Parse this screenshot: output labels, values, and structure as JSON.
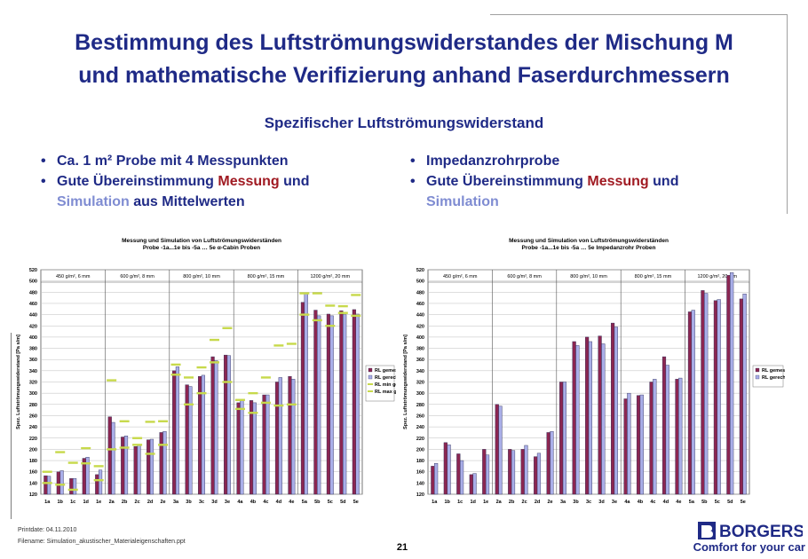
{
  "slide": {
    "title_line1": "Bestimmung des Luftströmungswiderstandes der Mischung M",
    "title_line2": "und mathematische Verifizierung anhand Faserdurchmessern",
    "subtitle": "Spezifischer Luftströmungswiderstand",
    "left_bullets": [
      {
        "pre": "Ca. 1 m² Probe mit 4 Messpunkten",
        "red": "",
        "mid": "",
        "blue": "",
        "post": ""
      },
      {
        "pre": "Gute Übereinstimmung ",
        "red": "Messung",
        "mid": " und ",
        "blue": "Simulation",
        "post": " aus Mittelwerten"
      }
    ],
    "right_bullets": [
      {
        "pre": "Impedanzrohrprobe",
        "red": "",
        "mid": "",
        "blue": "",
        "post": ""
      },
      {
        "pre": "Gute Übereinstimmung ",
        "red": "Messung",
        "mid": " und ",
        "blue": "Simulation",
        "post": ""
      }
    ],
    "footer_printdate": "Printdate: 04.11.2010",
    "footer_filename": "Filename: Simulation_akustischer_Materialeigenschaften.ppt",
    "page_number": "21",
    "logo_text": "BORGERS",
    "slogan": "Comfort for your car"
  },
  "colors": {
    "navy": "#1f2a86",
    "red": "#a01a22",
    "light_blue": "#7f8cd2",
    "bar_measured": "#8b2651",
    "bar_calculated": "#a9aee8",
    "marker_min_max": "#c7d94b"
  },
  "chart_data": [
    {
      "type": "bar",
      "title": "Messung und Simulation von Luftströmungswiderständen",
      "subtitle": "Probe -1a...1e bis -5a … 5e α-Cabin Proben",
      "ylabel": "Spez. Luftströmungswiderstand [Pa s/m]",
      "xlabel": "",
      "ylim": [
        120,
        520
      ],
      "yticks": [
        120,
        140,
        160,
        180,
        200,
        220,
        240,
        260,
        280,
        300,
        320,
        340,
        360,
        380,
        400,
        420,
        440,
        460,
        480,
        500,
        520
      ],
      "grid": true,
      "legend_position": "right",
      "groups": [
        "450 g/m², 6 mm",
        "600 g/m², 8 mm",
        "800 g/m², 10 mm",
        "800 g/m², 15 mm",
        "1200 g/m², 20 mm"
      ],
      "categories": [
        "1a",
        "1b",
        "1c",
        "1d",
        "1e",
        "2a",
        "2b",
        "2c",
        "2d",
        "2e",
        "3a",
        "3b",
        "3c",
        "3d",
        "3e",
        "4a",
        "4b",
        "4c",
        "4d",
        "4e",
        "5a",
        "5b",
        "5c",
        "5d",
        "5e"
      ],
      "series": [
        {
          "name": "RL gemessen",
          "kind": "bar",
          "values": [
            153,
            160,
            148,
            184,
            155,
            258,
            222,
            205,
            217,
            230,
            340,
            315,
            330,
            365,
            368,
            283,
            287,
            297,
            320,
            330,
            462,
            448,
            441,
            447,
            449
          ]
        },
        {
          "name": "RL gerechnet",
          "kind": "bar",
          "values": [
            152,
            162,
            148,
            186,
            163,
            248,
            224,
            208,
            218,
            232,
            347,
            312,
            332,
            358,
            367,
            288,
            283,
            297,
            328,
            325,
            477,
            438,
            438,
            440,
            441
          ]
        },
        {
          "name": "RL min gem.",
          "kind": "marker",
          "values": [
            140,
            137,
            128,
            175,
            145,
            200,
            203,
            208,
            192,
            208,
            333,
            280,
            300,
            355,
            320,
            272,
            265,
            283,
            278,
            280,
            440,
            430,
            420,
            443,
            438
          ]
        },
        {
          "name": "RL max gem.",
          "kind": "marker",
          "values": [
            160,
            195,
            176,
            202,
            170,
            323,
            250,
            220,
            249,
            250,
            351,
            328,
            346,
            395,
            416,
            288,
            300,
            328,
            385,
            388,
            478,
            478,
            456,
            455,
            475
          ]
        }
      ]
    },
    {
      "type": "bar",
      "title": "Messung und Simulation von Luftströmungswiderständen",
      "subtitle": "Probe -1a...1e bis -5a … 5e Impedanzrohr Proben",
      "ylabel": "Spez. Luftströmungswiderstand [Pa s/m]",
      "xlabel": "",
      "ylim": [
        120,
        520
      ],
      "yticks": [
        120,
        140,
        160,
        180,
        200,
        220,
        240,
        260,
        280,
        300,
        320,
        340,
        360,
        380,
        400,
        420,
        440,
        460,
        480,
        500,
        520
      ],
      "grid": true,
      "legend_position": "right",
      "groups": [
        "450 g/m², 6 mm",
        "600 g/m², 8 mm",
        "800 g/m², 10 mm",
        "800 g/m², 15 mm",
        "1200 g/m², 20 mm"
      ],
      "categories": [
        "1a",
        "1b",
        "1c",
        "1d",
        "1e",
        "2a",
        "2b",
        "2c",
        "2d",
        "2e",
        "3a",
        "3b",
        "3c",
        "3d",
        "3e",
        "4a",
        "4b",
        "4c",
        "4d",
        "4e",
        "5a",
        "5b",
        "5c",
        "5d",
        "5e"
      ],
      "series": [
        {
          "name": "RL gemessen",
          "kind": "bar",
          "values": [
            170,
            212,
            192,
            155,
            200,
            280,
            200,
            200,
            187,
            230,
            320,
            392,
            400,
            402,
            425,
            290,
            296,
            320,
            365,
            325,
            445,
            483,
            465,
            510,
            468
          ]
        },
        {
          "name": "RL gerechnet",
          "kind": "bar",
          "values": [
            175,
            208,
            180,
            157,
            190,
            277,
            198,
            207,
            193,
            232,
            320,
            385,
            392,
            388,
            418,
            300,
            297,
            325,
            350,
            327,
            448,
            478,
            467,
            515,
            477
          ]
        }
      ]
    }
  ]
}
